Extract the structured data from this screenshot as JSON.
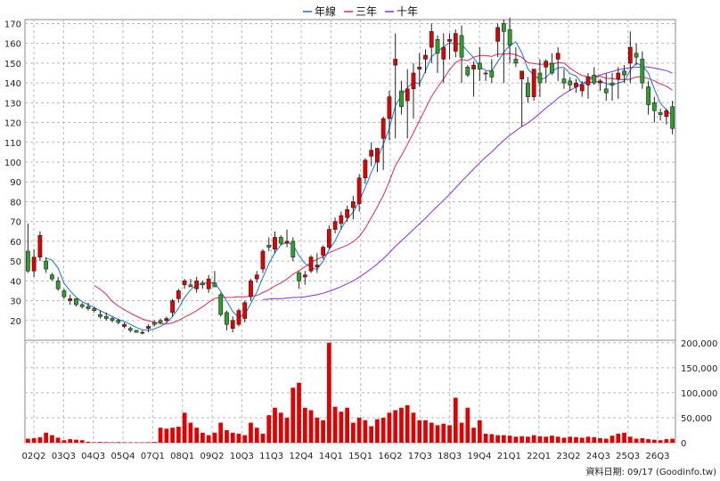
{
  "legend": [
    {
      "label": "年線",
      "color": "#1f6fd6"
    },
    {
      "label": "三年",
      "color": "#e0245a"
    },
    {
      "label": "十年",
      "color": "#8a2be2"
    }
  ],
  "footer": "資料日期: 09/17 (Goodinfo.tw)",
  "colors": {
    "up": "#e00000",
    "down": "#2e9e2e",
    "volume": "#e00000",
    "grid": "#b8b8b8"
  },
  "chart_data": [
    {
      "type": "candlestick",
      "title": "",
      "grid": true,
      "legend_position": "top-center",
      "ylim": [
        10,
        172
      ],
      "y_ticks": [
        20,
        30,
        40,
        50,
        60,
        70,
        80,
        90,
        100,
        110,
        120,
        130,
        140,
        150,
        160,
        170
      ],
      "x_tick_labels": [
        "02Q2",
        "03Q3",
        "04Q3",
        "05Q4",
        "07Q1",
        "08Q1",
        "09Q2",
        "10Q3",
        "11Q3",
        "12Q4",
        "14Q1",
        "15Q1",
        "16Q2",
        "17Q3",
        "18Q3",
        "19Q4",
        "21Q1",
        "22Q1",
        "23Q2",
        "24Q3",
        "25Q3",
        "26Q3"
      ],
      "ohlc": [
        [
          55,
          69,
          44,
          45
        ],
        [
          45,
          56,
          42,
          52
        ],
        [
          52,
          65,
          50,
          63
        ],
        [
          50,
          52,
          44,
          46
        ],
        [
          43,
          44,
          40,
          41
        ],
        [
          40,
          42,
          35,
          36
        ],
        [
          35,
          36,
          31,
          32
        ],
        [
          30,
          33,
          28,
          31
        ],
        [
          31,
          30,
          27,
          28
        ],
        [
          28,
          29,
          26,
          27
        ],
        [
          27,
          29,
          25,
          26
        ],
        [
          26,
          27,
          24,
          25
        ],
        [
          23,
          25,
          21,
          22
        ],
        [
          22,
          24,
          20,
          21
        ],
        [
          21,
          22,
          19,
          20
        ],
        [
          20,
          21,
          18,
          19
        ],
        [
          17,
          19,
          16,
          18
        ],
        [
          16,
          17,
          14,
          15
        ],
        [
          15,
          15,
          14,
          14
        ],
        [
          14,
          15,
          13,
          14
        ],
        [
          16,
          18,
          14,
          17
        ],
        [
          19,
          20,
          17,
          18
        ],
        [
          20,
          21,
          18,
          19
        ],
        [
          20,
          22,
          19,
          21
        ],
        [
          24,
          31,
          22,
          30
        ],
        [
          31,
          36,
          29,
          35
        ],
        [
          38,
          41,
          36,
          40
        ],
        [
          38,
          41,
          37,
          37
        ],
        [
          36,
          42,
          34,
          40
        ],
        [
          39,
          40,
          36,
          38
        ],
        [
          36,
          43,
          34,
          41
        ],
        [
          39,
          45,
          37,
          37
        ],
        [
          33,
          34,
          22,
          23
        ],
        [
          24,
          25,
          15,
          18
        ],
        [
          16,
          22,
          14,
          20
        ],
        [
          18,
          26,
          17,
          25
        ],
        [
          21,
          30,
          19,
          29
        ],
        [
          32,
          41,
          30,
          40
        ],
        [
          41,
          45,
          39,
          43
        ],
        [
          46,
          56,
          44,
          55
        ],
        [
          58,
          62,
          55,
          57
        ],
        [
          56,
          65,
          54,
          62
        ],
        [
          62,
          63,
          58,
          59
        ],
        [
          59,
          66,
          57,
          60
        ],
        [
          60,
          62,
          50,
          52
        ],
        [
          44,
          45,
          36,
          40
        ],
        [
          42,
          45,
          38,
          43
        ],
        [
          45,
          53,
          44,
          52
        ],
        [
          47,
          54,
          44,
          48
        ],
        [
          53,
          58,
          51,
          57
        ],
        [
          57,
          68,
          56,
          66
        ],
        [
          66,
          72,
          64,
          70
        ],
        [
          69,
          75,
          66,
          73
        ],
        [
          72,
          78,
          70,
          76
        ],
        [
          77,
          83,
          71,
          80
        ],
        [
          79,
          94,
          75,
          92
        ],
        [
          92,
          102,
          89,
          101
        ],
        [
          103,
          110,
          98,
          106
        ],
        [
          100,
          107,
          95,
          107
        ],
        [
          112,
          123,
          96,
          122
        ],
        [
          122,
          136,
          111,
          133
        ],
        [
          149,
          165,
          112,
          152
        ],
        [
          136,
          141,
          124,
          128
        ],
        [
          131,
          147,
          112,
          137
        ],
        [
          137,
          150,
          122,
          145
        ],
        [
          147,
          155,
          138,
          148
        ],
        [
          152,
          157,
          145,
          154
        ],
        [
          158,
          170,
          150,
          166
        ],
        [
          162,
          164,
          145,
          155
        ],
        [
          152,
          165,
          140,
          158
        ],
        [
          161,
          165,
          152,
          162
        ],
        [
          156,
          167,
          153,
          165
        ],
        [
          164,
          169,
          140,
          153
        ],
        [
          148,
          149,
          143,
          144
        ],
        [
          147,
          151,
          133,
          149
        ],
        [
          150,
          158,
          141,
          147
        ],
        [
          145,
          146,
          141,
          145
        ],
        [
          146,
          152,
          140,
          143
        ],
        [
          161,
          170,
          153,
          168
        ],
        [
          170,
          172,
          140,
          166
        ],
        [
          167,
          173,
          150,
          159
        ],
        [
          152,
          158,
          148,
          150
        ],
        [
          142,
          146,
          118,
          146
        ],
        [
          140,
          143,
          130,
          133
        ],
        [
          133,
          147,
          131,
          147
        ],
        [
          145,
          152,
          133,
          140
        ],
        [
          148,
          152,
          140,
          151
        ],
        [
          150,
          155,
          144,
          145
        ],
        [
          152,
          158,
          141,
          155
        ],
        [
          142,
          147,
          137,
          140
        ],
        [
          141,
          143,
          136,
          139
        ],
        [
          138,
          142,
          135,
          140
        ],
        [
          136,
          141,
          133,
          139
        ],
        [
          139,
          145,
          132,
          143
        ],
        [
          144,
          148,
          139,
          140
        ],
        [
          140,
          142,
          136,
          141
        ],
        [
          137,
          145,
          131,
          135
        ],
        [
          140,
          145,
          131,
          139
        ],
        [
          142,
          148,
          132,
          145
        ],
        [
          146,
          149,
          140,
          144
        ],
        [
          150,
          166,
          140,
          158
        ],
        [
          155,
          160,
          149,
          153
        ],
        [
          152,
          156,
          137,
          140
        ],
        [
          138,
          141,
          124,
          129
        ],
        [
          130,
          133,
          120,
          126
        ],
        [
          125,
          127,
          121,
          124
        ],
        [
          123,
          127,
          119,
          126
        ],
        [
          128,
          131,
          114,
          117
        ]
      ],
      "ma_year": [
        null,
        null,
        null,
        null,
        null,
        null,
        null,
        null,
        null,
        null,
        null,
        null,
        null,
        null,
        null,
        null,
        null,
        null,
        null,
        null,
        null,
        null,
        null,
        null,
        null,
        null,
        null,
        null,
        null,
        null,
        null,
        null,
        null,
        null,
        null,
        null,
        null,
        null,
        null,
        null,
        null,
        null,
        null,
        null,
        null,
        null,
        null,
        null,
        null,
        null,
        null,
        null,
        null,
        null,
        null,
        null,
        null,
        null,
        null,
        null,
        null,
        null,
        null,
        null,
        null,
        null,
        null,
        null,
        null,
        null,
        null,
        null,
        null,
        null,
        null,
        null,
        null,
        null,
        null,
        null,
        null,
        null,
        null,
        null,
        null,
        null,
        null,
        null,
        null,
        null,
        null,
        null,
        null,
        null,
        null,
        null,
        null,
        null,
        null,
        null,
        null,
        null,
        null,
        null,
        null,
        null,
        null,
        null,
        null,
        null,
        null,
        null,
        null,
        null,
        null
      ],
      "ma_three_year": [
        null,
        null,
        null,
        null,
        null,
        null,
        null,
        null,
        null,
        null,
        null,
        null,
        null,
        null,
        null,
        null,
        null,
        null,
        null,
        null
      ],
      "ma_ten_year": []
    },
    {
      "type": "bar",
      "series_name": "volume",
      "y_ticks_labels": [
        "0",
        "50,000",
        "100,000",
        "150,000",
        "200,000"
      ],
      "y_ticks": [
        0,
        50000,
        100000,
        150000,
        200000
      ],
      "ylim": [
        0,
        205000
      ],
      "values": [
        8000,
        9000,
        11000,
        20000,
        15000,
        10000,
        5000,
        7000,
        6000,
        5000,
        2000,
        1000,
        1500,
        1200,
        1000,
        1200,
        900,
        800,
        600,
        700,
        1000,
        1500,
        30000,
        28000,
        30000,
        32000,
        60000,
        40000,
        30000,
        20000,
        15000,
        20000,
        40000,
        25000,
        20000,
        18000,
        15000,
        40000,
        30000,
        18000,
        55000,
        70000,
        60000,
        50000,
        110000,
        120000,
        70000,
        65000,
        50000,
        45000,
        200000,
        72000,
        62000,
        70000,
        40000,
        50000,
        45000,
        33000,
        47000,
        50000,
        60000,
        65000,
        70000,
        75000,
        60000,
        45000,
        45000,
        40000,
        35000,
        38000,
        35000,
        90000,
        40000,
        70000,
        30000,
        45000,
        18000,
        17000,
        15000,
        15000,
        14000,
        12000,
        13000,
        12000,
        15000,
        13000,
        12000,
        14000,
        12000,
        10000,
        12000,
        11000,
        10000,
        12000,
        11000,
        9000,
        8000,
        14000,
        18000,
        20000,
        12000,
        8000,
        9000,
        7000,
        6000,
        5000,
        7000,
        8000
      ]
    }
  ]
}
